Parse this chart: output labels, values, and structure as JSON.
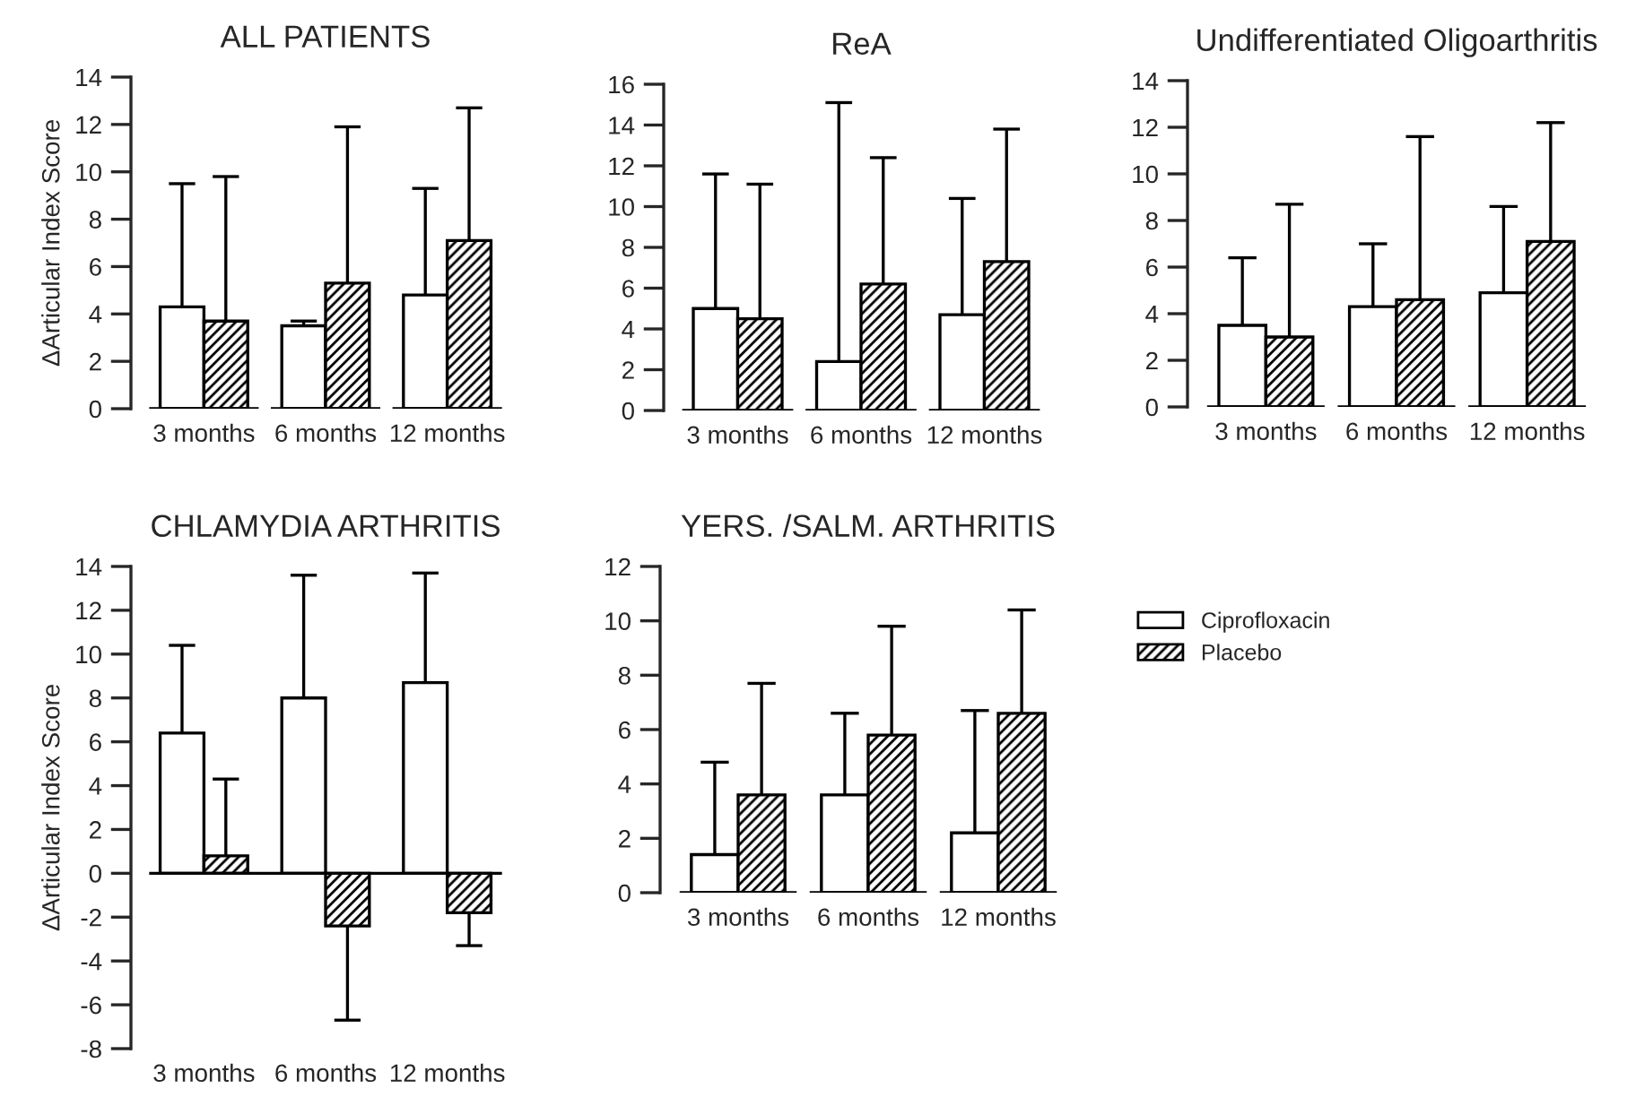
{
  "chart_data": [
    {
      "type": "bar",
      "title": "ALL PATIENTS",
      "ylabel": "ΔArticular Index Score",
      "categories": [
        "3 months",
        "6 months",
        "12 months"
      ],
      "ylim": [
        0,
        14
      ],
      "yticks": [
        0,
        2,
        4,
        6,
        8,
        10,
        12,
        14
      ],
      "grid": false,
      "legend": false,
      "series": [
        {
          "color": "#ffffff",
          "values": [
            4.3,
            3.5,
            4.8
          ],
          "errors": [
            [
              4.3,
              9.5
            ],
            [
              3.5,
              3.7
            ],
            [
              4.8,
              9.3
            ]
          ]
        },
        {
          "color": "#000000",
          "values": [
            3.7,
            5.3,
            7.1
          ],
          "errors": [
            [
              3.7,
              9.8
            ],
            [
              5.3,
              11.9
            ],
            [
              7.1,
              12.7
            ]
          ]
        }
      ]
    },
    {
      "type": "bar",
      "title": "ReA",
      "categories": [
        "3 months",
        "6 months",
        "12 months"
      ],
      "ylim": [
        0,
        16
      ],
      "yticks": [
        0,
        2,
        4,
        6,
        8,
        10,
        12,
        14,
        16
      ],
      "grid": false,
      "legend": false,
      "series": [
        {
          "color": "#ffffff",
          "values": [
            5.0,
            2.4,
            4.7
          ],
          "errors": [
            [
              5.0,
              11.6
            ],
            [
              2.4,
              15.1
            ],
            [
              4.7,
              10.4
            ]
          ]
        },
        {
          "color": "#000000",
          "values": [
            4.5,
            6.2,
            7.3
          ],
          "errors": [
            [
              4.5,
              11.1
            ],
            [
              6.2,
              12.4
            ],
            [
              7.3,
              13.8
            ]
          ]
        }
      ]
    },
    {
      "type": "bar",
      "title": "Undifferentiated Oligoarthritis",
      "categories": [
        "3 months",
        "6 months",
        "12 months"
      ],
      "ylim": [
        0,
        14
      ],
      "yticks": [
        0,
        2,
        4,
        6,
        8,
        10,
        12,
        14
      ],
      "grid": false,
      "legend": false,
      "series": [
        {
          "color": "#ffffff",
          "values": [
            3.5,
            4.3,
            4.9
          ],
          "errors": [
            [
              3.5,
              6.4
            ],
            [
              4.3,
              7.0
            ],
            [
              4.9,
              8.6
            ]
          ]
        },
        {
          "color": "#000000",
          "values": [
            3.0,
            4.6,
            7.1
          ],
          "errors": [
            [
              3.0,
              8.7
            ],
            [
              4.6,
              11.6
            ],
            [
              7.1,
              12.2
            ]
          ]
        }
      ]
    },
    {
      "type": "bar",
      "title": "CHLAMYDIA ARTHRITIS",
      "ylabel": "ΔArticular Index Score",
      "categories": [
        "3 months",
        "6 months",
        "12 months"
      ],
      "ylim": [
        -8,
        14
      ],
      "yticks": [
        -8,
        -6,
        -4,
        -2,
        0,
        2,
        4,
        6,
        8,
        10,
        12,
        14
      ],
      "grid": false,
      "legend": false,
      "ref_lines": [
        {
          "axis": "y",
          "value": 0,
          "color": "#000000"
        }
      ],
      "series": [
        {
          "color": "#ffffff",
          "values": [
            6.4,
            8.0,
            8.7
          ],
          "errors": [
            [
              6.4,
              10.4
            ],
            [
              8.0,
              13.6
            ],
            [
              8.7,
              13.7
            ]
          ]
        },
        {
          "color": "#000000",
          "values": [
            0.8,
            -2.4,
            -1.8
          ],
          "errors": [
            [
              0.8,
              4.3
            ],
            [
              -6.7,
              -2.4
            ],
            [
              -3.3,
              -1.8
            ]
          ]
        }
      ]
    },
    {
      "type": "bar",
      "title": "YERS. /SALM. ARTHRITIS",
      "categories": [
        "3 months",
        "6 months",
        "12 months"
      ],
      "ylim": [
        0,
        12
      ],
      "yticks": [
        0,
        2,
        4,
        6,
        8,
        10,
        12
      ],
      "grid": false,
      "legend": "right",
      "series": [
        {
          "name": "Ciprofloxacin",
          "color": "#ffffff",
          "values": [
            1.4,
            3.6,
            2.2
          ],
          "errors": [
            [
              1.4,
              4.8
            ],
            [
              3.6,
              6.6
            ],
            [
              2.2,
              6.7
            ]
          ]
        },
        {
          "name": "Placebo",
          "color": "#000000",
          "values": [
            3.6,
            5.8,
            6.6
          ],
          "errors": [
            [
              3.6,
              7.7
            ],
            [
              5.8,
              9.8
            ],
            [
              6.6,
              10.4
            ]
          ]
        }
      ]
    }
  ]
}
